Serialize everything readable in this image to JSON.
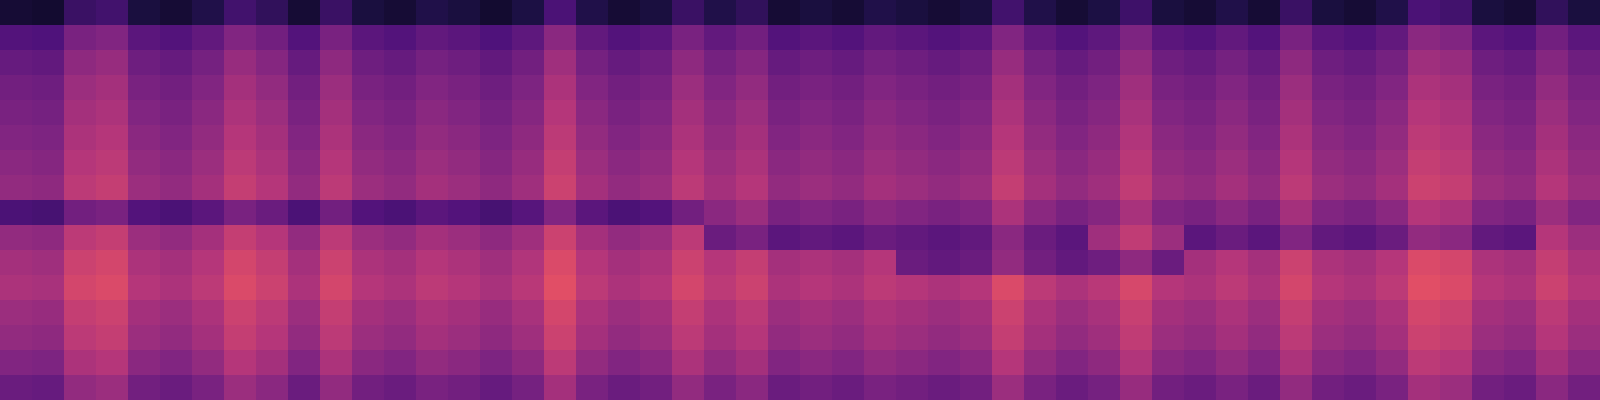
{
  "chart_data": {
    "type": "heatmap",
    "color": "magma",
    "tick_labels": false,
    "color_range": [
      0,
      100
    ],
    "cells": [
      [
        10,
        9,
        20,
        22,
        12,
        10,
        14,
        22,
        18,
        10,
        20,
        12,
        10,
        14,
        12,
        9,
        13,
        24,
        14,
        10,
        12,
        20,
        14,
        18,
        10,
        12,
        10,
        14,
        12,
        10,
        12,
        22,
        14,
        10,
        13,
        21,
        12,
        10,
        14,
        10,
        20,
        12,
        10,
        14,
        24,
        22,
        12,
        10,
        18,
        12
      ],
      [
        26,
        25,
        36,
        38,
        28,
        26,
        30,
        38,
        34,
        26,
        36,
        28,
        26,
        30,
        28,
        25,
        29,
        40,
        30,
        26,
        28,
        36,
        30,
        34,
        26,
        28,
        26,
        30,
        28,
        26,
        28,
        38,
        30,
        26,
        29,
        37,
        28,
        26,
        30,
        26,
        36,
        28,
        26,
        30,
        40,
        38,
        28,
        26,
        34,
        28
      ],
      [
        31,
        30,
        41,
        43,
        33,
        31,
        35,
        43,
        39,
        31,
        41,
        33,
        31,
        35,
        33,
        30,
        34,
        45,
        35,
        31,
        33,
        41,
        35,
        39,
        31,
        33,
        31,
        35,
        33,
        31,
        33,
        43,
        35,
        31,
        34,
        42,
        33,
        31,
        35,
        31,
        41,
        33,
        31,
        35,
        45,
        43,
        33,
        31,
        39,
        33
      ],
      [
        34,
        33,
        44,
        46,
        36,
        34,
        38,
        46,
        42,
        34,
        44,
        36,
        34,
        38,
        36,
        33,
        37,
        48,
        38,
        34,
        36,
        44,
        38,
        42,
        34,
        36,
        34,
        38,
        36,
        34,
        36,
        46,
        38,
        34,
        37,
        45,
        36,
        34,
        38,
        34,
        44,
        36,
        34,
        38,
        48,
        46,
        36,
        34,
        42,
        36
      ],
      [
        36,
        35,
        46,
        48,
        38,
        36,
        40,
        48,
        44,
        36,
        46,
        38,
        36,
        40,
        38,
        35,
        39,
        50,
        40,
        36,
        38,
        46,
        40,
        44,
        36,
        38,
        36,
        40,
        38,
        36,
        38,
        48,
        40,
        36,
        39,
        47,
        38,
        36,
        40,
        36,
        46,
        38,
        36,
        40,
        50,
        48,
        38,
        36,
        44,
        38
      ],
      [
        38,
        37,
        48,
        50,
        40,
        38,
        42,
        50,
        46,
        38,
        48,
        40,
        38,
        42,
        40,
        37,
        41,
        52,
        42,
        38,
        40,
        48,
        42,
        46,
        38,
        40,
        38,
        42,
        40,
        38,
        40,
        50,
        42,
        38,
        41,
        49,
        40,
        38,
        42,
        38,
        48,
        40,
        38,
        42,
        52,
        50,
        40,
        38,
        46,
        40
      ],
      [
        40,
        39,
        50,
        52,
        42,
        40,
        44,
        52,
        48,
        40,
        50,
        42,
        40,
        44,
        42,
        39,
        43,
        54,
        44,
        40,
        42,
        50,
        44,
        48,
        40,
        42,
        40,
        44,
        42,
        40,
        42,
        52,
        44,
        40,
        43,
        51,
        42,
        40,
        44,
        40,
        50,
        42,
        40,
        44,
        54,
        52,
        42,
        40,
        48,
        42
      ],
      [
        42,
        41,
        52,
        54,
        44,
        42,
        46,
        54,
        50,
        42,
        52,
        44,
        42,
        46,
        44,
        41,
        45,
        56,
        46,
        42,
        44,
        52,
        46,
        50,
        42,
        44,
        42,
        46,
        44,
        42,
        44,
        54,
        46,
        42,
        45,
        53,
        44,
        42,
        46,
        42,
        52,
        44,
        42,
        46,
        56,
        54,
        44,
        42,
        50,
        44
      ],
      [
        24,
        23,
        34,
        36,
        26,
        24,
        28,
        36,
        32,
        24,
        34,
        26,
        24,
        28,
        26,
        23,
        27,
        38,
        28,
        24,
        26,
        34,
        40,
        44,
        36,
        38,
        36,
        40,
        38,
        36,
        38,
        48,
        40,
        36,
        39,
        47,
        38,
        36,
        40,
        36,
        46,
        38,
        36,
        40,
        50,
        48,
        38,
        36,
        44,
        38
      ],
      [
        42,
        41,
        52,
        54,
        44,
        42,
        46,
        54,
        50,
        42,
        52,
        44,
        42,
        46,
        44,
        41,
        45,
        56,
        46,
        42,
        44,
        52,
        32,
        36,
        28,
        30,
        28,
        32,
        30,
        28,
        30,
        40,
        32,
        28,
        45,
        53,
        44,
        28,
        32,
        28,
        38,
        30,
        28,
        32,
        42,
        40,
        30,
        28,
        50,
        44
      ],
      [
        46,
        45,
        56,
        58,
        48,
        46,
        50,
        58,
        54,
        46,
        56,
        48,
        46,
        50,
        48,
        45,
        49,
        60,
        50,
        46,
        48,
        56,
        50,
        54,
        46,
        48,
        46,
        50,
        32,
        30,
        32,
        42,
        34,
        30,
        33,
        41,
        32,
        46,
        50,
        46,
        56,
        48,
        46,
        50,
        60,
        58,
        48,
        46,
        54,
        48
      ],
      [
        48,
        47,
        58,
        60,
        50,
        48,
        52,
        60,
        56,
        48,
        58,
        50,
        48,
        52,
        50,
        47,
        51,
        62,
        52,
        48,
        50,
        58,
        52,
        56,
        48,
        50,
        48,
        52,
        50,
        48,
        50,
        60,
        52,
        48,
        51,
        59,
        50,
        48,
        52,
        48,
        58,
        50,
        48,
        52,
        62,
        60,
        50,
        48,
        56,
        50
      ],
      [
        44,
        43,
        54,
        56,
        46,
        44,
        48,
        56,
        52,
        44,
        54,
        46,
        44,
        48,
        46,
        43,
        47,
        58,
        48,
        44,
        46,
        54,
        48,
        52,
        44,
        46,
        44,
        48,
        46,
        44,
        46,
        56,
        48,
        44,
        47,
        55,
        46,
        44,
        48,
        44,
        54,
        46,
        44,
        48,
        58,
        56,
        46,
        44,
        52,
        46
      ],
      [
        42,
        41,
        52,
        54,
        44,
        42,
        46,
        54,
        50,
        42,
        52,
        44,
        42,
        46,
        44,
        41,
        45,
        56,
        46,
        42,
        44,
        52,
        46,
        50,
        42,
        44,
        42,
        46,
        44,
        42,
        44,
        54,
        46,
        42,
        45,
        53,
        44,
        42,
        46,
        42,
        52,
        44,
        42,
        46,
        56,
        54,
        44,
        42,
        50,
        44
      ],
      [
        38,
        37,
        48,
        50,
        40,
        38,
        42,
        50,
        46,
        38,
        48,
        40,
        38,
        42,
        40,
        37,
        41,
        52,
        42,
        38,
        40,
        48,
        42,
        46,
        38,
        40,
        38,
        42,
        40,
        38,
        40,
        50,
        42,
        38,
        41,
        49,
        40,
        38,
        42,
        38,
        48,
        40,
        38,
        42,
        52,
        50,
        40,
        38,
        46,
        40
      ],
      [
        32,
        31,
        42,
        44,
        34,
        32,
        36,
        44,
        40,
        32,
        42,
        34,
        32,
        36,
        34,
        31,
        35,
        46,
        36,
        32,
        34,
        42,
        36,
        40,
        32,
        34,
        32,
        36,
        34,
        32,
        34,
        44,
        36,
        32,
        35,
        43,
        34,
        32,
        36,
        32,
        42,
        34,
        32,
        36,
        46,
        44,
        34,
        32,
        40,
        34
      ]
    ]
  }
}
